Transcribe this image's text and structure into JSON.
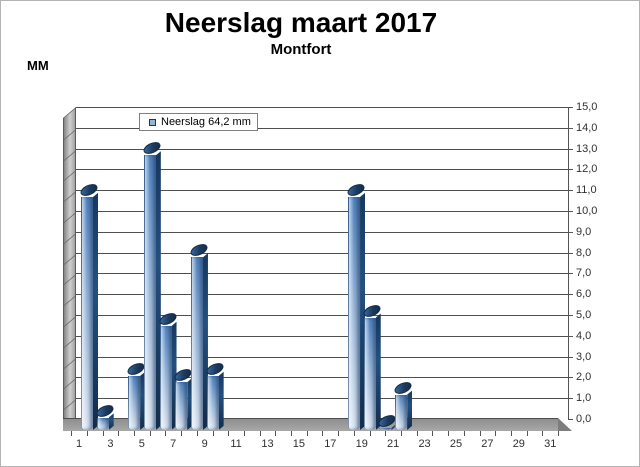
{
  "window": {
    "background": "#ffffff",
    "border_color": "#b3b3b3"
  },
  "header": {
    "title": "Neerslag maart 2017",
    "subtitle": "Montfort",
    "unit_label": "MM"
  },
  "legend": {
    "label": "Neerslag 64,2 mm",
    "marker_color": "#95b3d7"
  },
  "chart_data": {
    "type": "bar",
    "style": "3d-bars",
    "title": "Neerslag maart 2017",
    "subtitle": "Montfort",
    "unit": "mm",
    "total": 64.2,
    "total_label": "Neerslag 64,2 mm",
    "categories": [
      1,
      2,
      3,
      4,
      5,
      6,
      7,
      8,
      9,
      10,
      11,
      12,
      13,
      14,
      15,
      16,
      17,
      18,
      19,
      20,
      21,
      22,
      23,
      24,
      25,
      26,
      27,
      28,
      29,
      30,
      31
    ],
    "values": [
      11.2,
      0.6,
      0,
      2.6,
      13.2,
      5.0,
      2.3,
      8.3,
      2.6,
      0,
      0,
      0,
      0,
      0,
      0,
      0,
      0,
      11.2,
      5.4,
      0.1,
      1.7,
      0,
      0,
      0,
      0,
      0,
      0,
      0,
      0,
      0,
      0
    ],
    "x_tick_labels": [
      "1",
      "3",
      "5",
      "7",
      "9",
      "11",
      "13",
      "15",
      "17",
      "19",
      "21",
      "23",
      "25",
      "27",
      "29",
      "31"
    ],
    "y_tick_labels": [
      "0,0",
      "1,0",
      "2,0",
      "3,0",
      "4,0",
      "5,0",
      "6,0",
      "7,0",
      "8,0",
      "9,0",
      "10,0",
      "11,0",
      "12,0",
      "13,0",
      "14,0",
      "15,0"
    ],
    "xlabel": "",
    "ylabel": "MM",
    "ylim": [
      0,
      15
    ],
    "y_step": 1.0,
    "grid": true,
    "legend_position": "top-left",
    "colors": {
      "bar_front_light": "#dbe5f1",
      "bar_front_mid": "#95b3d7",
      "bar_front_dark": "#4f81bd",
      "bar_edge": "#17375e",
      "wall_gray": "#a2a2a2",
      "floor_gray": "#8f8f8f",
      "gridline": "#4f4f4f"
    }
  }
}
